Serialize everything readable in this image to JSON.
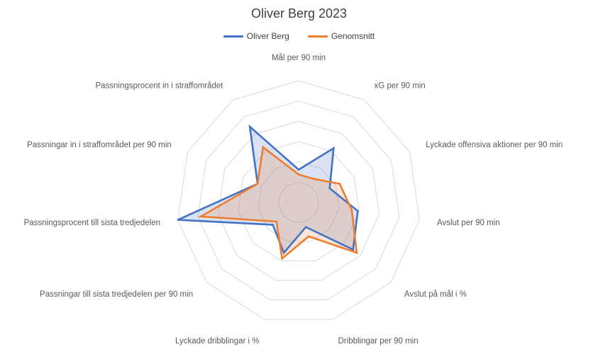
{
  "chart_data": {
    "type": "radar",
    "title": "Oliver Berg 2023",
    "legend_position": "top",
    "grid": true,
    "rlim": [
      0,
      1
    ],
    "rings": 6,
    "categories": [
      "Mål per 90 min",
      "xG per 90 min",
      "Lyckade offensiva aktioner per 90 min",
      "Avslut per 90 min",
      "Avslut på mål i %",
      "Dribblingar per 90 min",
      "Lyckade dribblingar i %",
      "Passningar till sista tredjedelen per 90 min",
      "Passningsprocent till sista tredjedelen",
      "Passningar in i straffområdet per 90 min",
      "Passningsprocent in i straffområdet"
    ],
    "series": [
      {
        "name": "Oliver Berg",
        "color": "#4472c4",
        "fill": "#4472c4",
        "values": [
          0.27,
          0.53,
          0.28,
          0.49,
          0.59,
          0.21,
          0.43,
          0.28,
          1.0,
          0.37,
          0.74
        ]
      },
      {
        "name": "Genomsnitt",
        "color": "#ed7d31",
        "fill": "#ed7d31",
        "values": [
          0.23,
          0.23,
          0.37,
          0.44,
          0.63,
          0.29,
          0.48,
          0.24,
          0.81,
          0.37,
          0.54
        ]
      }
    ]
  }
}
